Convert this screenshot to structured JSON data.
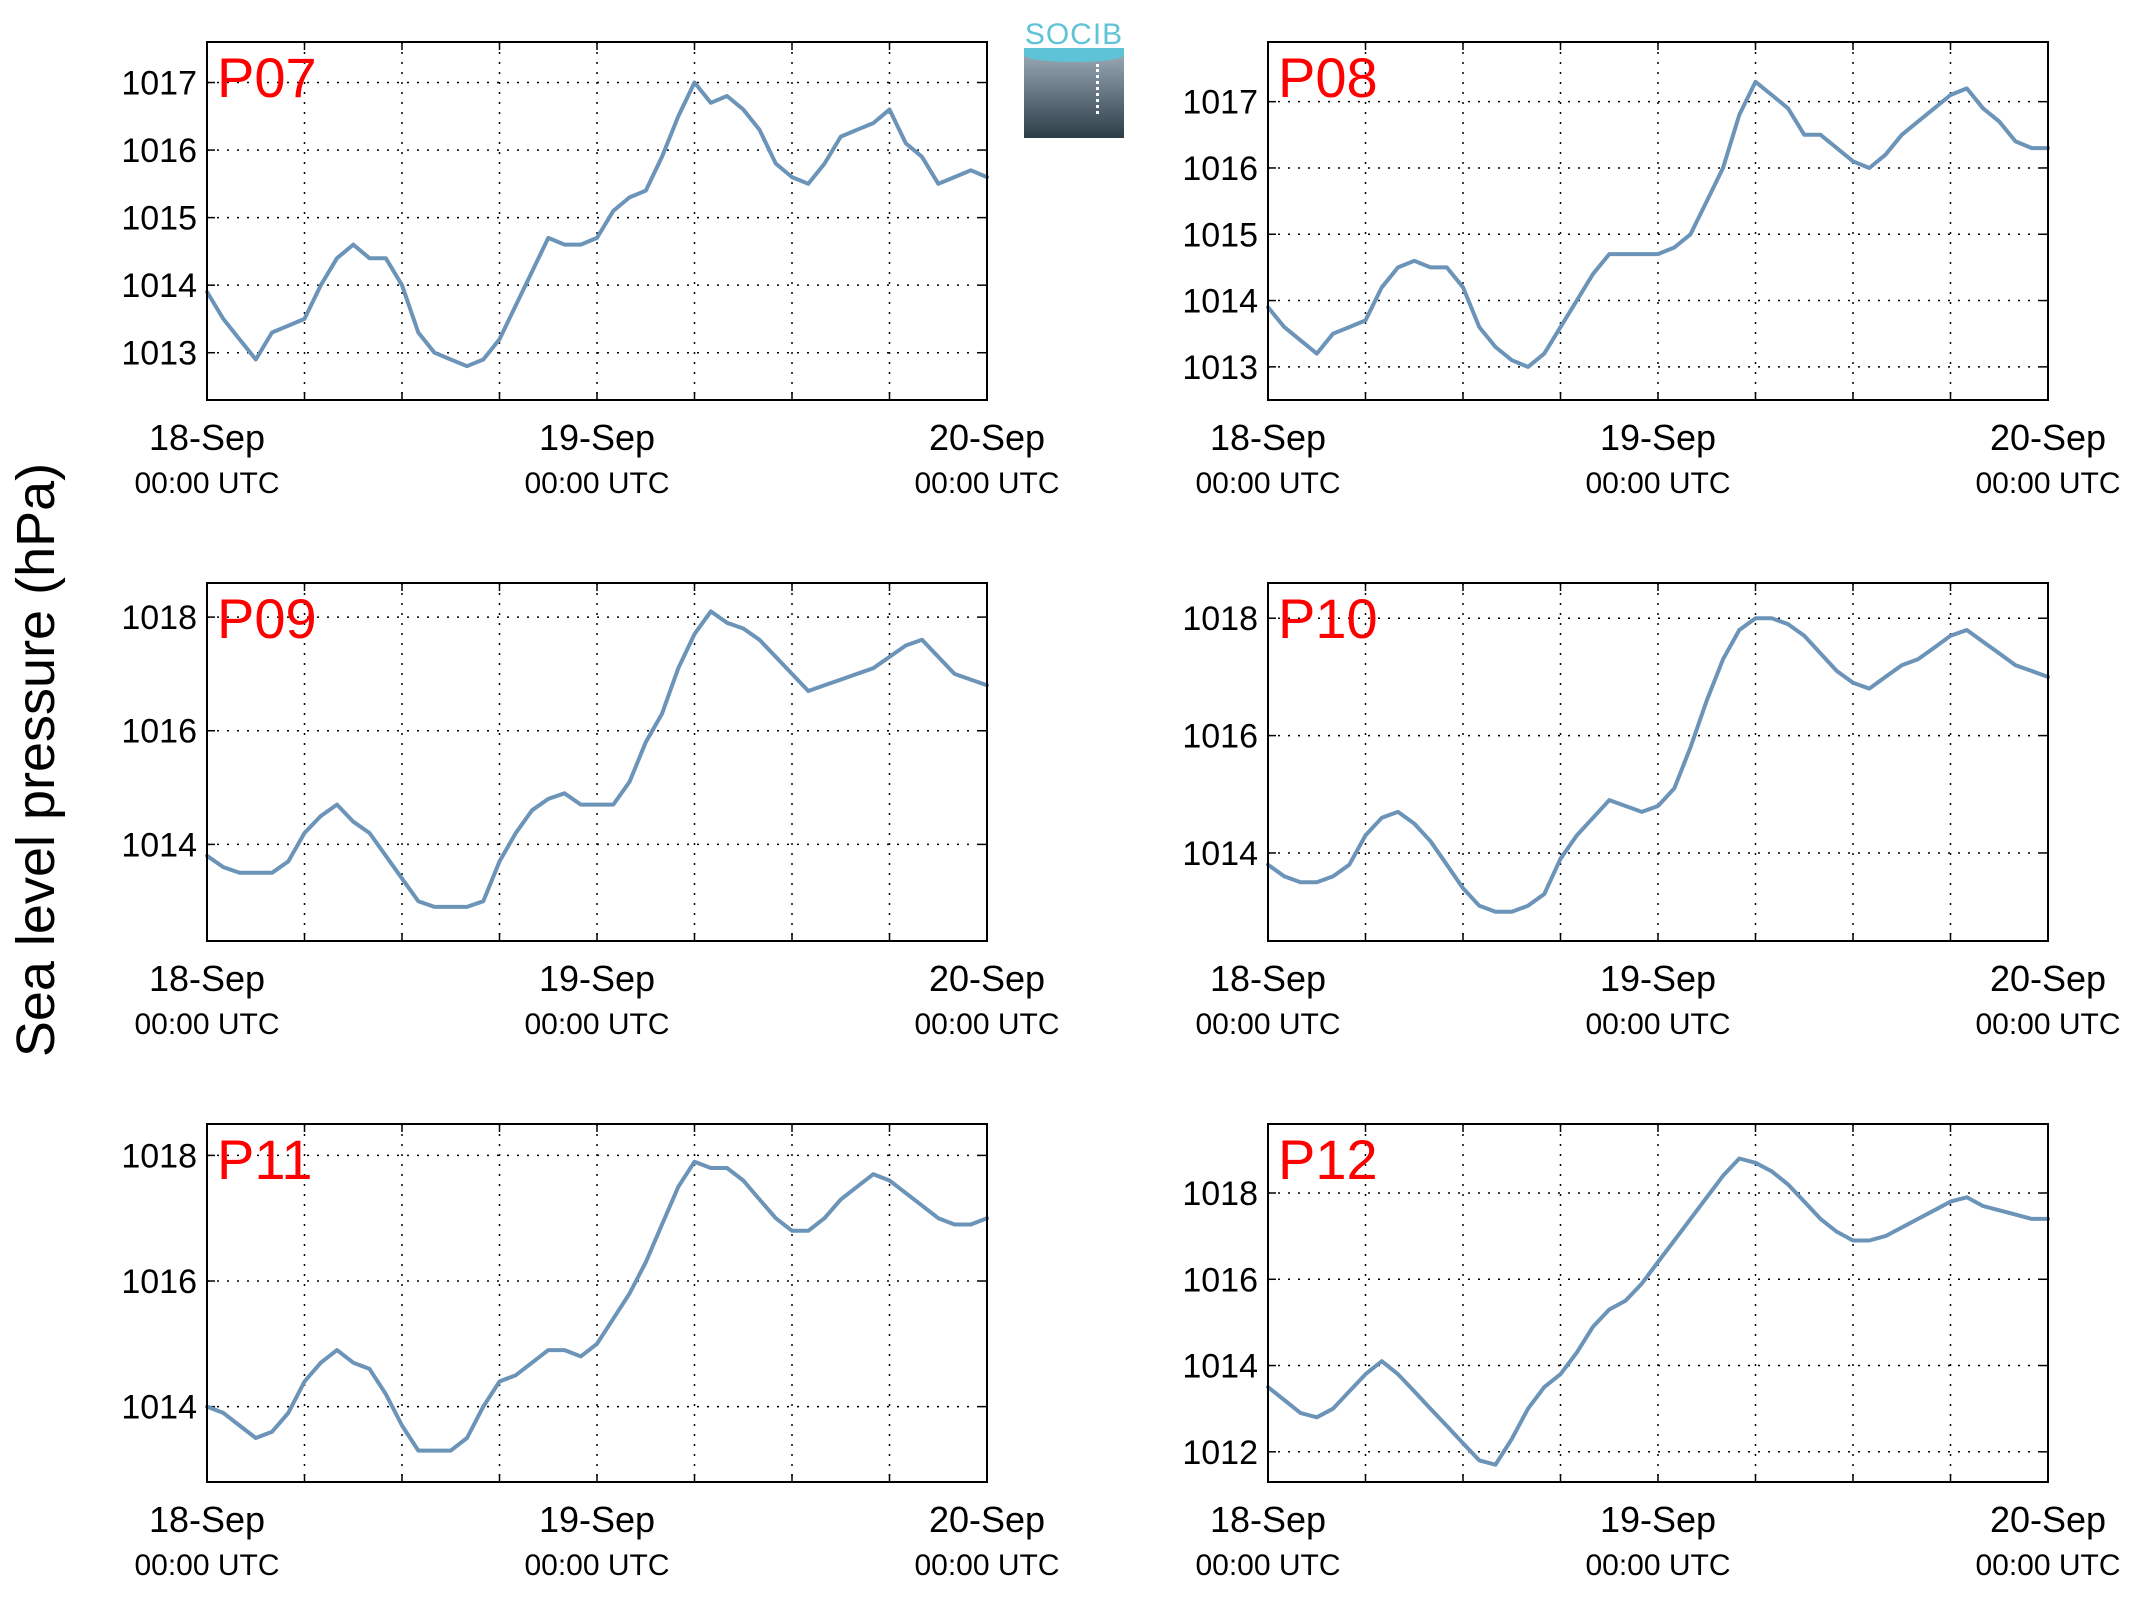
{
  "figure": {
    "ylabel": "Sea level pressure (hPa)",
    "logo_text": "SOCIB",
    "line_color": "#6b94b8",
    "panel_label_color": "#ff0000"
  },
  "chart_data": [
    {
      "type": "line",
      "panel_label": "P07",
      "xlabel": "",
      "ylabel": "",
      "x_ticks": [
        {
          "date": "18-Sep",
          "time": "00:00 UTC"
        },
        {
          "date": "19-Sep",
          "time": "00:00 UTC"
        },
        {
          "date": "20-Sep",
          "time": "00:00 UTC"
        }
      ],
      "xlim": [
        0,
        48
      ],
      "ylim": [
        1012.3,
        1017.6
      ],
      "yticks": [
        1013,
        1014,
        1015,
        1016,
        1017
      ],
      "grid": true,
      "series": [
        {
          "x": [
            0,
            1,
            2,
            3,
            4,
            5,
            6,
            7,
            8,
            9,
            10,
            11,
            12,
            13,
            14,
            15,
            16,
            17,
            18,
            19,
            20,
            21,
            22,
            23,
            24,
            25,
            26,
            27,
            28,
            29,
            30,
            31,
            32,
            33,
            34,
            35,
            36,
            37,
            38,
            39,
            40,
            41,
            42,
            43,
            44,
            45,
            46,
            47,
            48
          ],
          "y": [
            1013.9,
            1013.5,
            1013.2,
            1012.9,
            1013.3,
            1013.4,
            1013.5,
            1014.0,
            1014.4,
            1014.6,
            1014.4,
            1014.4,
            1014.0,
            1013.3,
            1013.0,
            1012.9,
            1012.8,
            1012.9,
            1013.2,
            1013.7,
            1014.2,
            1014.7,
            1014.6,
            1014.6,
            1014.7,
            1015.1,
            1015.3,
            1015.4,
            1015.9,
            1016.5,
            1017.0,
            1016.7,
            1016.8,
            1016.6,
            1016.3,
            1015.8,
            1015.6,
            1015.5,
            1015.8,
            1016.2,
            1016.3,
            1016.4,
            1016.6,
            1016.1,
            1015.9,
            1015.5,
            1015.6,
            1015.7,
            1015.6
          ]
        }
      ]
    },
    {
      "type": "line",
      "panel_label": "P08",
      "xlabel": "",
      "ylabel": "",
      "x_ticks": [
        {
          "date": "18-Sep",
          "time": "00:00 UTC"
        },
        {
          "date": "19-Sep",
          "time": "00:00 UTC"
        },
        {
          "date": "20-Sep",
          "time": "00:00 UTC"
        }
      ],
      "xlim": [
        0,
        48
      ],
      "ylim": [
        1012.5,
        1017.9
      ],
      "yticks": [
        1013,
        1014,
        1015,
        1016,
        1017
      ],
      "grid": true,
      "series": [
        {
          "x": [
            0,
            1,
            2,
            3,
            4,
            5,
            6,
            7,
            8,
            9,
            10,
            11,
            12,
            13,
            14,
            15,
            16,
            17,
            18,
            19,
            20,
            21,
            22,
            23,
            24,
            25,
            26,
            27,
            28,
            29,
            30,
            31,
            32,
            33,
            34,
            35,
            36,
            37,
            38,
            39,
            40,
            41,
            42,
            43,
            44,
            45,
            46,
            47,
            48
          ],
          "y": [
            1013.9,
            1013.6,
            1013.4,
            1013.2,
            1013.5,
            1013.6,
            1013.7,
            1014.2,
            1014.5,
            1014.6,
            1014.5,
            1014.5,
            1014.2,
            1013.6,
            1013.3,
            1013.1,
            1013.0,
            1013.2,
            1013.6,
            1014.0,
            1014.4,
            1014.7,
            1014.7,
            1014.7,
            1014.7,
            1014.8,
            1015.0,
            1015.5,
            1016.0,
            1016.8,
            1017.3,
            1017.1,
            1016.9,
            1016.5,
            1016.5,
            1016.3,
            1016.1,
            1016.0,
            1016.2,
            1016.5,
            1016.7,
            1016.9,
            1017.1,
            1017.2,
            1016.9,
            1016.7,
            1016.4,
            1016.3,
            1016.3
          ]
        }
      ]
    },
    {
      "type": "line",
      "panel_label": "P09",
      "xlabel": "",
      "ylabel": "",
      "x_ticks": [
        {
          "date": "18-Sep",
          "time": "00:00 UTC"
        },
        {
          "date": "19-Sep",
          "time": "00:00 UTC"
        },
        {
          "date": "20-Sep",
          "time": "00:00 UTC"
        }
      ],
      "xlim": [
        0,
        48
      ],
      "ylim": [
        1012.3,
        1018.6
      ],
      "yticks": [
        1014,
        1016,
        1018
      ],
      "grid": true,
      "series": [
        {
          "x": [
            0,
            1,
            2,
            3,
            4,
            5,
            6,
            7,
            8,
            9,
            10,
            11,
            12,
            13,
            14,
            15,
            16,
            17,
            18,
            19,
            20,
            21,
            22,
            23,
            24,
            25,
            26,
            27,
            28,
            29,
            30,
            31,
            32,
            33,
            34,
            35,
            36,
            37,
            38,
            39,
            40,
            41,
            42,
            43,
            44,
            45,
            46,
            47,
            48
          ],
          "y": [
            1013.8,
            1013.6,
            1013.5,
            1013.5,
            1013.5,
            1013.7,
            1014.2,
            1014.5,
            1014.7,
            1014.4,
            1014.2,
            1013.8,
            1013.4,
            1013.0,
            1012.9,
            1012.9,
            1012.9,
            1013.0,
            1013.7,
            1014.2,
            1014.6,
            1014.8,
            1014.9,
            1014.7,
            1014.7,
            1014.7,
            1015.1,
            1015.8,
            1016.3,
            1017.1,
            1017.7,
            1018.1,
            1017.9,
            1017.8,
            1017.6,
            1017.3,
            1017.0,
            1016.7,
            1016.8,
            1016.9,
            1017.0,
            1017.1,
            1017.3,
            1017.5,
            1017.6,
            1017.3,
            1017.0,
            1016.9,
            1016.8
          ]
        }
      ]
    },
    {
      "type": "line",
      "panel_label": "P10",
      "xlabel": "",
      "ylabel": "",
      "x_ticks": [
        {
          "date": "18-Sep",
          "time": "00:00 UTC"
        },
        {
          "date": "19-Sep",
          "time": "00:00 UTC"
        },
        {
          "date": "20-Sep",
          "time": "00:00 UTC"
        }
      ],
      "xlim": [
        0,
        48
      ],
      "ylim": [
        1012.5,
        1018.6
      ],
      "yticks": [
        1014,
        1016,
        1018
      ],
      "grid": true,
      "series": [
        {
          "x": [
            0,
            1,
            2,
            3,
            4,
            5,
            6,
            7,
            8,
            9,
            10,
            11,
            12,
            13,
            14,
            15,
            16,
            17,
            18,
            19,
            20,
            21,
            22,
            23,
            24,
            25,
            26,
            27,
            28,
            29,
            30,
            31,
            32,
            33,
            34,
            35,
            36,
            37,
            38,
            39,
            40,
            41,
            42,
            43,
            44,
            45,
            46,
            47,
            48
          ],
          "y": [
            1013.8,
            1013.6,
            1013.5,
            1013.5,
            1013.6,
            1013.8,
            1014.3,
            1014.6,
            1014.7,
            1014.5,
            1014.2,
            1013.8,
            1013.4,
            1013.1,
            1013.0,
            1013.0,
            1013.1,
            1013.3,
            1013.9,
            1014.3,
            1014.6,
            1014.9,
            1014.8,
            1014.7,
            1014.8,
            1015.1,
            1015.8,
            1016.6,
            1017.3,
            1017.8,
            1018.0,
            1018.0,
            1017.9,
            1017.7,
            1017.4,
            1017.1,
            1016.9,
            1016.8,
            1017.0,
            1017.2,
            1017.3,
            1017.5,
            1017.7,
            1017.8,
            1017.6,
            1017.4,
            1017.2,
            1017.1,
            1017.0
          ]
        }
      ]
    },
    {
      "type": "line",
      "panel_label": "P11",
      "xlabel": "",
      "ylabel": "",
      "x_ticks": [
        {
          "date": "18-Sep",
          "time": "00:00 UTC"
        },
        {
          "date": "19-Sep",
          "time": "00:00 UTC"
        },
        {
          "date": "20-Sep",
          "time": "00:00 UTC"
        }
      ],
      "xlim": [
        0,
        48
      ],
      "ylim": [
        1012.8,
        1018.5
      ],
      "yticks": [
        1014,
        1016,
        1018
      ],
      "grid": true,
      "series": [
        {
          "x": [
            0,
            1,
            2,
            3,
            4,
            5,
            6,
            7,
            8,
            9,
            10,
            11,
            12,
            13,
            14,
            15,
            16,
            17,
            18,
            19,
            20,
            21,
            22,
            23,
            24,
            25,
            26,
            27,
            28,
            29,
            30,
            31,
            32,
            33,
            34,
            35,
            36,
            37,
            38,
            39,
            40,
            41,
            42,
            43,
            44,
            45,
            46,
            47,
            48
          ],
          "y": [
            1014.0,
            1013.9,
            1013.7,
            1013.5,
            1013.6,
            1013.9,
            1014.4,
            1014.7,
            1014.9,
            1014.7,
            1014.6,
            1014.2,
            1013.7,
            1013.3,
            1013.3,
            1013.3,
            1013.5,
            1014.0,
            1014.4,
            1014.5,
            1014.7,
            1014.9,
            1014.9,
            1014.8,
            1015.0,
            1015.4,
            1015.8,
            1016.3,
            1016.9,
            1017.5,
            1017.9,
            1017.8,
            1017.8,
            1017.6,
            1017.3,
            1017.0,
            1016.8,
            1016.8,
            1017.0,
            1017.3,
            1017.5,
            1017.7,
            1017.6,
            1017.4,
            1017.2,
            1017.0,
            1016.9,
            1016.9,
            1017.0
          ]
        }
      ]
    },
    {
      "type": "line",
      "panel_label": "P12",
      "xlabel": "",
      "ylabel": "",
      "x_ticks": [
        {
          "date": "18-Sep",
          "time": "00:00 UTC"
        },
        {
          "date": "19-Sep",
          "time": "00:00 UTC"
        },
        {
          "date": "20-Sep",
          "time": "00:00 UTC"
        }
      ],
      "xlim": [
        0,
        48
      ],
      "ylim": [
        1011.3,
        1019.6
      ],
      "yticks": [
        1012,
        1014,
        1016,
        1018
      ],
      "grid": true,
      "series": [
        {
          "x": [
            0,
            1,
            2,
            3,
            4,
            5,
            6,
            7,
            8,
            9,
            10,
            11,
            12,
            13,
            14,
            15,
            16,
            17,
            18,
            19,
            20,
            21,
            22,
            23,
            24,
            25,
            26,
            27,
            28,
            29,
            30,
            31,
            32,
            33,
            34,
            35,
            36,
            37,
            38,
            39,
            40,
            41,
            42,
            43,
            44,
            45,
            46,
            47,
            48
          ],
          "y": [
            1013.5,
            1013.2,
            1012.9,
            1012.8,
            1013.0,
            1013.4,
            1013.8,
            1014.1,
            1013.8,
            1013.4,
            1013.0,
            1012.6,
            1012.2,
            1011.8,
            1011.7,
            1012.3,
            1013.0,
            1013.5,
            1013.8,
            1014.3,
            1014.9,
            1015.3,
            1015.5,
            1015.9,
            1016.4,
            1016.9,
            1017.4,
            1017.9,
            1018.4,
            1018.8,
            1018.7,
            1018.5,
            1018.2,
            1017.8,
            1017.4,
            1017.1,
            1016.9,
            1016.9,
            1017.0,
            1017.2,
            1017.4,
            1017.6,
            1017.8,
            1017.9,
            1017.7,
            1017.6,
            1017.5,
            1017.4,
            1017.4
          ]
        }
      ]
    }
  ]
}
